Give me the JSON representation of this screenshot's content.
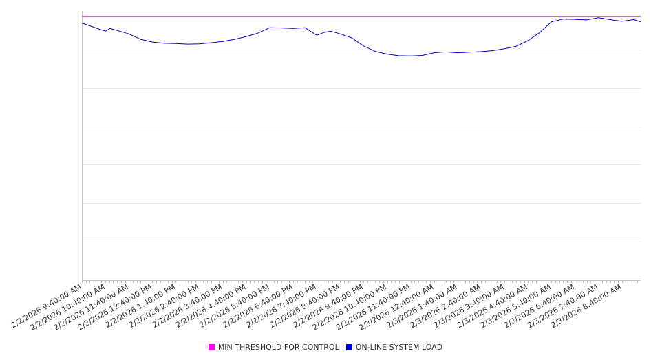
{
  "chart_data": {
    "type": "line",
    "title": "",
    "xlabel": "",
    "ylabel": "",
    "x_tick_labels": [
      "2/2/2026 9:40:00 AM",
      "2/2/2026 10:40:00 AM",
      "2/2/2026 11:40:00 AM",
      "2/2/2026 12:40:00 PM",
      "2/2/2026 1:40:00 PM",
      "2/2/2026 2:40:00 PM",
      "2/2/2026 3:40:00 PM",
      "2/2/2026 4:40:00 PM",
      "2/2/2026 5:40:00 PM",
      "2/2/2026 6:40:00 PM",
      "2/2/2026 7:40:00 PM",
      "2/2/2026 8:40:00 PM",
      "2/2/2026 9:40:00 PM",
      "2/2/2026 10:40:00 PM",
      "2/2/2026 11:40:00 PM",
      "2/3/2026 12:40:00 AM",
      "2/3/2026 1:40:00 AM",
      "2/3/2026 2:40:00 AM",
      "2/3/2026 3:40:00 AM",
      "2/3/2026 4:40:00 AM",
      "2/3/2026 5:40:00 AM",
      "2/3/2026 6:40:00 AM",
      "2/3/2026 7:40:00 AM",
      "2/3/2026 8:40:00 AM"
    ],
    "x_span_hours": 23.8,
    "ylim": [
      0,
      1.0
    ],
    "y_gridlines": [
      0.1429,
      0.2857,
      0.4286,
      0.5714,
      0.7143,
      0.8571
    ],
    "grid": true,
    "legend_position": "bottom-center",
    "series": [
      {
        "name": "MIN THRESHOLD FOR CONTROL",
        "color": "#ff00ff",
        "x_hours": [
          0,
          23.8
        ],
        "values": [
          0.98,
          0.98
        ]
      },
      {
        "name": "ON-LINE SYSTEM LOAD",
        "color": "#0000cc",
        "x_hours": [
          0,
          0.5,
          1.0,
          1.2,
          1.5,
          2.0,
          2.5,
          3.0,
          3.5,
          4.0,
          4.5,
          5.0,
          5.5,
          6.0,
          6.5,
          7.0,
          7.5,
          8.0,
          8.5,
          9.0,
          9.5,
          10.0,
          10.3,
          10.6,
          11.0,
          11.5,
          12.0,
          12.5,
          13.0,
          13.5,
          14.0,
          14.5,
          15.0,
          15.5,
          16.0,
          16.5,
          17.0,
          17.5,
          18.0,
          18.5,
          19.0,
          19.5,
          20.0,
          20.5,
          21.0,
          21.5,
          22.0,
          22.5,
          23.0,
          23.5,
          23.8
        ],
        "values": [
          0.955,
          0.94,
          0.925,
          0.935,
          0.928,
          0.915,
          0.895,
          0.885,
          0.88,
          0.879,
          0.877,
          0.878,
          0.882,
          0.887,
          0.895,
          0.905,
          0.918,
          0.938,
          0.937,
          0.935,
          0.938,
          0.91,
          0.92,
          0.925,
          0.915,
          0.9,
          0.87,
          0.85,
          0.84,
          0.834,
          0.833,
          0.835,
          0.845,
          0.848,
          0.845,
          0.847,
          0.849,
          0.853,
          0.86,
          0.869,
          0.89,
          0.92,
          0.96,
          0.97,
          0.969,
          0.967,
          0.975,
          0.968,
          0.962,
          0.968,
          0.96
        ]
      }
    ]
  },
  "legend": {
    "items": [
      {
        "label": "MIN THRESHOLD FOR CONTROL",
        "color": "#ff00ff"
      },
      {
        "label": "ON-LINE SYSTEM LOAD",
        "color": "#0000cc"
      }
    ]
  }
}
